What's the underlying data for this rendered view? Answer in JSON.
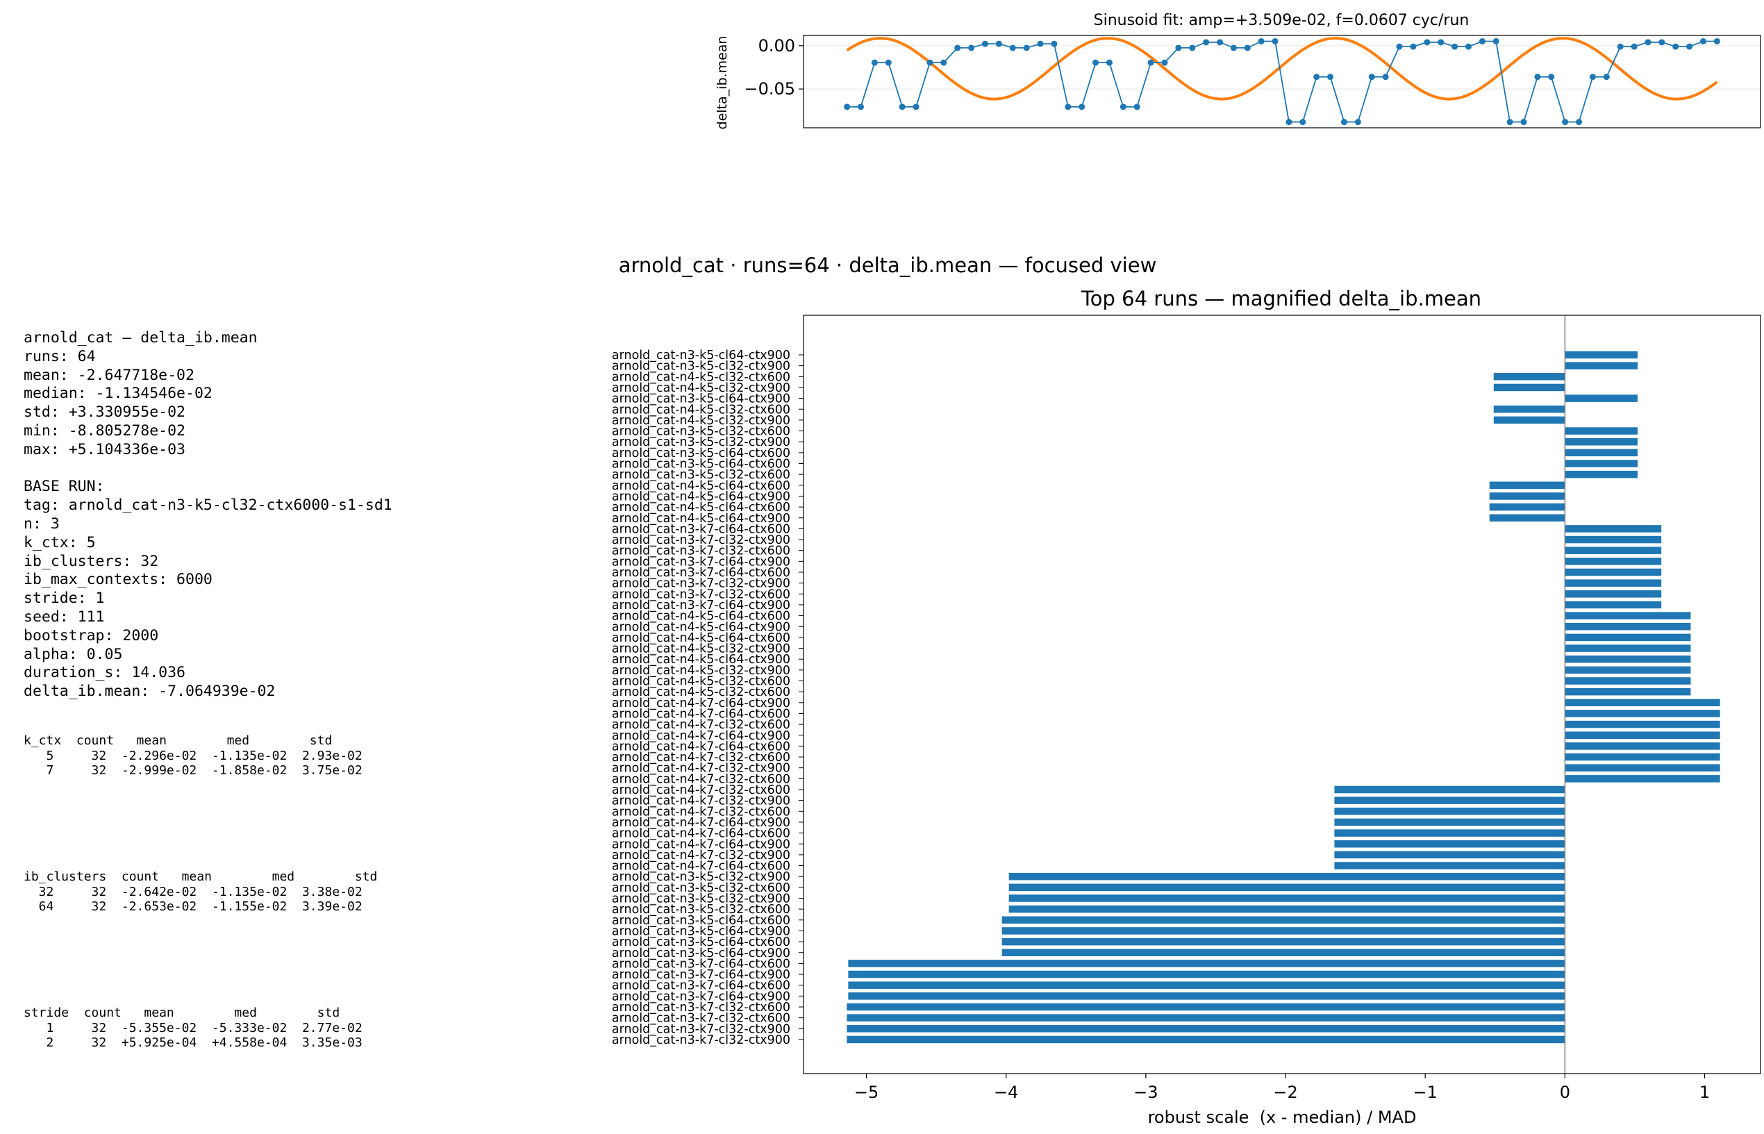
{
  "figure": {
    "suptitle": "arnold_cat · runs=64 · delta_ib.mean — focused view"
  },
  "stats_text": [
    "arnold_cat — delta_ib.mean",
    "runs: 64",
    "mean: -2.647718e-02",
    "median: -1.134546e-02",
    "std: +3.330955e-02",
    "min: -8.805278e-02",
    "max: +5.104336e-03",
    "",
    "BASE RUN:",
    "tag: arnold_cat-n3-k5-cl32-ctx6000-s1-sd1",
    "n: 3",
    "k_ctx: 5",
    "ib_clusters: 32",
    "ib_max_contexts: 6000",
    "stride: 1",
    "seed: 111",
    "bootstrap: 2000",
    "alpha: 0.05",
    "duration_s: 14.036",
    "delta_ib.mean: -7.064939e-02"
  ],
  "group_tables": {
    "k_ctx": [
      "k_ctx  count   mean        med        std",
      "   5     32  -2.296e-02  -1.135e-02  2.93e-02",
      "   7     32  -2.999e-02  -1.858e-02  3.75e-02"
    ],
    "ib_clusters": [
      "ib_clusters  count   mean        med        std",
      "  32     32  -2.642e-02  -1.135e-02  3.38e-02",
      "  64     32  -2.653e-02  -1.155e-02  3.39e-02"
    ],
    "stride": [
      "stride  count   mean        med        std",
      "   1     32  -5.355e-02  -5.333e-02  2.77e-02",
      "   2     32  +5.925e-04  +4.558e-04  3.35e-03"
    ]
  },
  "colors": {
    "series_blue": "#1f77b4",
    "fit_orange": "#ff7f0e",
    "zero_line": "#808080",
    "grid": "#e6e6e6"
  },
  "chart_data": [
    {
      "type": "line",
      "title": "Sinusoid fit: amp=+3.509e-02, f=0.0607 cyc/run",
      "xlabel": "",
      "ylabel": "delta_ib.mean",
      "xlim": [
        -3.15,
        66.15
      ],
      "ylim": [
        -0.0948,
        0.0119
      ],
      "yticks": [
        0.0,
        -0.05
      ],
      "ytick_labels": [
        "0.00",
        "−0.05"
      ],
      "grid": true,
      "series": [
        {
          "kind": "observed",
          "x": [
            0,
            1,
            2,
            3,
            4,
            5,
            6,
            7,
            8,
            9,
            10,
            11,
            12,
            13,
            14,
            15,
            16,
            17,
            18,
            19,
            20,
            21,
            22,
            23,
            24,
            25,
            26,
            27,
            28,
            29,
            30,
            31,
            32,
            33,
            34,
            35,
            36,
            37,
            38,
            39,
            40,
            41,
            42,
            43,
            44,
            45,
            46,
            47,
            48,
            49,
            50,
            51,
            52,
            53,
            54,
            55,
            56,
            57,
            58,
            59,
            60,
            61,
            62,
            63
          ],
          "y": [
            -0.0706,
            -0.0706,
            -0.0195,
            -0.0195,
            -0.0706,
            -0.0706,
            -0.0195,
            -0.0195,
            -0.0025,
            -0.0025,
            0.0022,
            0.0022,
            -0.0025,
            -0.0025,
            0.0022,
            0.0022,
            -0.0706,
            -0.0706,
            -0.0195,
            -0.0195,
            -0.0706,
            -0.0706,
            -0.0195,
            -0.0195,
            -0.0025,
            -0.0025,
            0.004,
            0.004,
            -0.0025,
            -0.0025,
            0.0051,
            0.0051,
            -0.0881,
            -0.0881,
            -0.036,
            -0.036,
            -0.0881,
            -0.0881,
            -0.036,
            -0.036,
            -0.001,
            -0.001,
            0.004,
            0.004,
            -0.001,
            -0.001,
            0.0051,
            0.0051,
            -0.0881,
            -0.0881,
            -0.036,
            -0.036,
            -0.0881,
            -0.0881,
            -0.036,
            -0.036,
            -0.001,
            -0.001,
            0.004,
            0.004,
            -0.001,
            -0.001,
            0.0051,
            0.0051
          ]
        },
        {
          "kind": "fit",
          "amplitude": 0.03509,
          "frequency": 0.0607,
          "offset": -0.0265,
          "phase": 0.65
        }
      ]
    },
    {
      "type": "bar",
      "orientation": "horizontal",
      "title": "Top 64 runs — magnified delta_ib.mean",
      "xlabel": "robust scale  (x - median) / MAD",
      "ylabel": "",
      "xlim": [
        -5.45,
        1.4
      ],
      "xticks": [
        -5,
        -4,
        -3,
        -2,
        -1,
        0,
        1
      ],
      "xtick_labels": [
        "−5",
        "−4",
        "−3",
        "−2",
        "−1",
        "0",
        "1"
      ],
      "categories": [
        "arnold_cat-n3-k5-cl64-ctx900",
        "arnold_cat-n3-k5-cl32-ctx900",
        "arnold_cat-n4-k5-cl32-ctx600",
        "arnold_cat-n4-k5-cl32-ctx900",
        "arnold_cat-n3-k5-cl64-ctx900",
        "arnold_cat-n4-k5-cl32-ctx600",
        "arnold_cat-n4-k5-cl32-ctx900",
        "arnold_cat-n3-k5-cl32-ctx600",
        "arnold_cat-n3-k5-cl32-ctx900",
        "arnold_cat-n3-k5-cl64-ctx600",
        "arnold_cat-n3-k5-cl64-ctx600",
        "arnold_cat-n3-k5-cl32-ctx600",
        "arnold_cat-n4-k5-cl64-ctx600",
        "arnold_cat-n4-k5-cl64-ctx900",
        "arnold_cat-n4-k5-cl64-ctx600",
        "arnold_cat-n4-k5-cl64-ctx900",
        "arnold_cat-n3-k7-cl64-ctx600",
        "arnold_cat-n3-k7-cl32-ctx900",
        "arnold_cat-n3-k7-cl32-ctx600",
        "arnold_cat-n3-k7-cl64-ctx900",
        "arnold_cat-n3-k7-cl64-ctx600",
        "arnold_cat-n3-k7-cl32-ctx900",
        "arnold_cat-n3-k7-cl32-ctx600",
        "arnold_cat-n3-k7-cl64-ctx900",
        "arnold_cat-n4-k5-cl64-ctx600",
        "arnold_cat-n4-k5-cl64-ctx900",
        "arnold_cat-n4-k5-cl64-ctx600",
        "arnold_cat-n4-k5-cl32-ctx900",
        "arnold_cat-n4-k5-cl64-ctx900",
        "arnold_cat-n4-k5-cl32-ctx900",
        "arnold_cat-n4-k5-cl32-ctx600",
        "arnold_cat-n4-k5-cl32-ctx600",
        "arnold_cat-n4-k7-cl64-ctx900",
        "arnold_cat-n4-k7-cl64-ctx600",
        "arnold_cat-n4-k7-cl32-ctx600",
        "arnold_cat-n4-k7-cl64-ctx900",
        "arnold_cat-n4-k7-cl64-ctx600",
        "arnold_cat-n4-k7-cl32-ctx600",
        "arnold_cat-n4-k7-cl32-ctx900",
        "arnold_cat-n4-k7-cl32-ctx600",
        "arnold_cat-n4-k7-cl32-ctx600",
        "arnold_cat-n4-k7-cl32-ctx900",
        "arnold_cat-n4-k7-cl32-ctx600",
        "arnold_cat-n4-k7-cl64-ctx900",
        "arnold_cat-n4-k7-cl64-ctx600",
        "arnold_cat-n4-k7-cl64-ctx900",
        "arnold_cat-n4-k7-cl32-ctx900",
        "arnold_cat-n4-k7-cl64-ctx600",
        "arnold_cat-n3-k5-cl32-ctx900",
        "arnold_cat-n3-k5-cl32-ctx600",
        "arnold_cat-n3-k5-cl32-ctx900",
        "arnold_cat-n3-k5-cl32-ctx600",
        "arnold_cat-n3-k5-cl64-ctx600",
        "arnold_cat-n3-k5-cl64-ctx900",
        "arnold_cat-n3-k5-cl64-ctx600",
        "arnold_cat-n3-k5-cl64-ctx900",
        "arnold_cat-n3-k7-cl64-ctx600",
        "arnold_cat-n3-k7-cl64-ctx900",
        "arnold_cat-n3-k7-cl64-ctx600",
        "arnold_cat-n3-k7-cl64-ctx900",
        "arnold_cat-n3-k7-cl32-ctx600",
        "arnold_cat-n3-k7-cl32-ctx600",
        "arnold_cat-n3-k7-cl32-ctx900",
        "arnold_cat-n3-k7-cl32-ctx900"
      ],
      "values": [
        0.52,
        0.52,
        -0.51,
        -0.51,
        0.52,
        -0.51,
        -0.51,
        0.52,
        0.52,
        0.52,
        0.52,
        0.52,
        -0.54,
        -0.54,
        -0.54,
        -0.54,
        0.69,
        0.69,
        0.69,
        0.69,
        0.69,
        0.69,
        0.69,
        0.69,
        0.9,
        0.9,
        0.9,
        0.9,
        0.9,
        0.9,
        0.9,
        0.9,
        1.11,
        1.11,
        1.11,
        1.11,
        1.11,
        1.11,
        1.11,
        1.11,
        -1.65,
        -1.65,
        -1.65,
        -1.65,
        -1.65,
        -1.65,
        -1.65,
        -1.65,
        -3.98,
        -3.98,
        -3.98,
        -3.98,
        -4.03,
        -4.03,
        -4.03,
        -4.03,
        -5.13,
        -5.13,
        -5.13,
        -5.13,
        -5.14,
        -5.14,
        -5.14,
        -5.14
      ]
    }
  ]
}
